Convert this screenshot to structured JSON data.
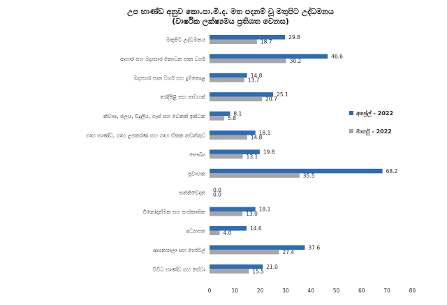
{
  "chart_data": {
    "type": "bar",
    "orientation": "horizontal",
    "title": "උප භාණ්ඩ අනුව කො.පා.මි.ද. මත පදනම් වූ මතුපිට උද්ධමනය",
    "subtitle": "(වාර්ෂික ලක්ෂ්‍යමය ප්‍රතිශත වෙනස)",
    "xlabel": "",
    "ylabel": "",
    "xlim": [
      0,
      80
    ],
    "xticks": [
      "0",
      "10",
      "20",
      "30",
      "40",
      "50",
      "60",
      "70",
      "80"
    ],
    "grid": false,
    "legend_position": "right",
    "categories": [
      "මතුපිට උද්ධමනය",
      "ආහාර සහ මද්‍යසාර නොවන පාන වර්ග",
      "මද්‍යසාර පාන වර්ග සහ දුම්කොළ",
      "රෙදිපිළි සහ පාවහන්",
      "නිවාස, ජලය, විදුලිය, ගෑස් සහ වෙනත් ඉන්ධන",
      "ගෘහ භාණ්ඩ, ගෘහ උපකරණ සහ ගෘහ ඒකක නඩත්තුව",
      "සෞඛ්‍ය",
      "ප්‍රවාහන",
      "සන්නිවේදන",
      "විනෝදාත්මක සහ සංස්කෘතික",
      "අධ්‍යාපන",
      "ආපනශාලා සහ හෝටල්",
      "විවිධ භාණ්ඩ සහ සේවා"
    ],
    "series": [
      {
        "name": "අප්‍රේල් - 2022",
        "color": "#2e6cb5",
        "values": [
          29.8,
          46.6,
          14.8,
          25.1,
          8.1,
          18.1,
          19.8,
          68.2,
          0.0,
          18.1,
          14.6,
          37.6,
          21.0
        ],
        "labels": [
          "29.8",
          "46.6",
          "14.8",
          "25.1",
          "8.1",
          "18.1",
          "19.8",
          "68.2",
          "0.0",
          "18.1",
          "14.6",
          "37.6",
          "21.0"
        ]
      },
      {
        "name": "මාර්තු - 2022",
        "color": "#a6a6a6",
        "values": [
          18.7,
          30.2,
          13.7,
          20.7,
          5.8,
          14.8,
          13.1,
          35.5,
          0.0,
          13.0,
          4.0,
          27.4,
          15.5
        ],
        "labels": [
          "18.7",
          "30.2",
          "13.7",
          "20.7",
          "5.8",
          "14.8",
          "13.1",
          "35.5",
          "0.0",
          "13.0",
          "4.0",
          "27.4",
          "15.5"
        ]
      }
    ]
  }
}
